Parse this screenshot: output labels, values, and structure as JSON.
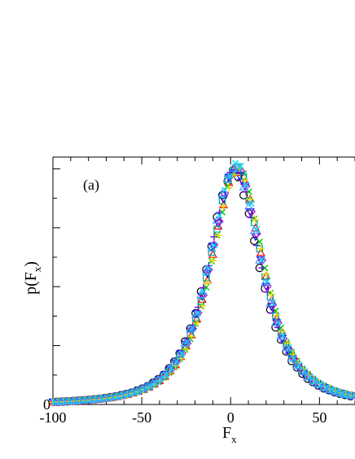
{
  "chart_data": {
    "type": "scatter",
    "panel_label": "(a)",
    "xlabel": "F",
    "xlabel_sub": "x",
    "ylabel_main": "p(F",
    "ylabel_sub": "x",
    "ylabel_close": ")",
    "xlim": [
      -100,
      70
    ],
    "ylim": [
      0,
      1.05
    ],
    "x_ticks": [
      {
        "value": -100,
        "label": "-100"
      },
      {
        "value": -50,
        "label": "-50"
      },
      {
        "value": 0,
        "label": "0"
      },
      {
        "value": 50,
        "label": "50"
      }
    ],
    "y_ticks": [
      {
        "value": 0,
        "label": "0"
      }
    ],
    "series": [
      {
        "marker": "circle",
        "color": "#000000",
        "offset": -1.5,
        "amp": 0.985,
        "phase": 0
      },
      {
        "marker": "triangle-up",
        "color": "#ff0000",
        "offset": 0.6,
        "amp": 1.0,
        "phase": 0.6
      },
      {
        "marker": "plus",
        "color": "#8000ff",
        "offset": -0.6,
        "amp": 0.995,
        "phase": 1.2
      },
      {
        "marker": "x",
        "color": "#00c000",
        "offset": 0.9,
        "amp": 1.005,
        "phase": 1.8
      },
      {
        "marker": "triangle-down",
        "color": "#0000ff",
        "offset": -0.3,
        "amp": 0.99,
        "phase": 2.4
      },
      {
        "marker": "diamond",
        "color": "#c000c0",
        "offset": 0.3,
        "amp": 1.0,
        "phase": 3.0
      },
      {
        "marker": "square",
        "color": "#00a0a0",
        "offset": 0.0,
        "amp": 1.01,
        "phase": 3.6
      },
      {
        "marker": "plus",
        "color": "#e0e000",
        "offset": 1.2,
        "amp": 0.995,
        "phase": 4.2
      },
      {
        "marker": "x",
        "color": "#00e0ff",
        "offset": 0.4,
        "amp": 1.02,
        "phase": 4.8
      },
      {
        "marker": "triangle-up",
        "color": "#40a0ff",
        "offset": -0.9,
        "amp": 1.005,
        "phase": 5.4
      }
    ],
    "curve": {
      "center": 3,
      "scale": 23,
      "power": 1.5
    },
    "x_points": [
      -100,
      -97,
      -94,
      -91,
      -88,
      -85,
      -82,
      -79,
      -76,
      -73,
      -70,
      -67,
      -64,
      -61,
      -58,
      -55,
      -52,
      -49,
      -46,
      -43,
      -40,
      -37,
      -34,
      -31,
      -28,
      -25,
      -22,
      -19,
      -16,
      -13,
      -10,
      -7,
      -4,
      -1,
      2,
      5,
      8,
      11,
      14,
      17,
      20,
      23,
      26,
      29,
      32,
      35,
      38,
      41,
      44,
      47,
      50,
      53,
      56,
      59,
      62,
      65,
      68
    ]
  }
}
